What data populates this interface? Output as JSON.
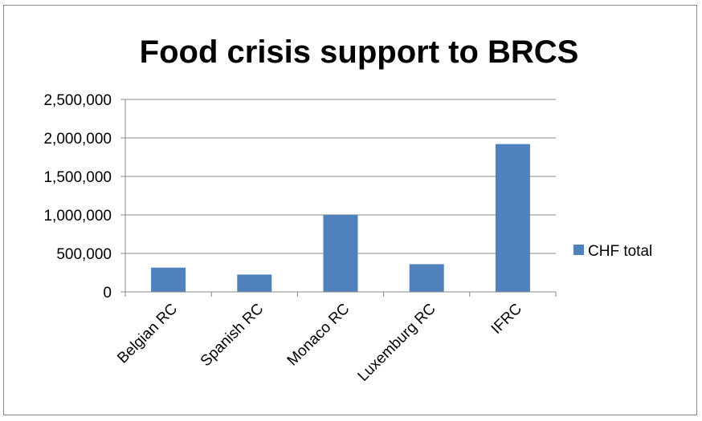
{
  "chart_data": {
    "type": "bar",
    "title": "Food crisis support to BRCS",
    "xlabel": "",
    "ylabel": "",
    "categories": [
      "Belgian  RC",
      "Spanish  RC",
      "Monaco  RC",
      "Luxemburg RC",
      "IFRC"
    ],
    "series": [
      {
        "name": "CHF total",
        "values": [
          315000,
          225000,
          1000000,
          360000,
          1920000
        ],
        "color": "#4F81BD"
      }
    ],
    "ylim": [
      0,
      2500000
    ],
    "yticks": [
      0,
      500000,
      1000000,
      1500000,
      2000000,
      2500000
    ],
    "ytick_labels": [
      "0",
      "500,000",
      "1,000,000",
      "1,500,000",
      "2,000,000",
      "2,500,000"
    ],
    "grid": true,
    "legend_position": "right"
  }
}
